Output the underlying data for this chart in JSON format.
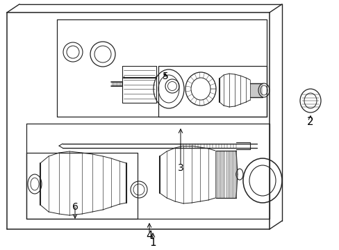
{
  "background_color": "#ffffff",
  "line_color": "#222222",
  "label_color": "#000000",
  "figsize": [
    4.89,
    3.6
  ],
  "dpi": 100
}
